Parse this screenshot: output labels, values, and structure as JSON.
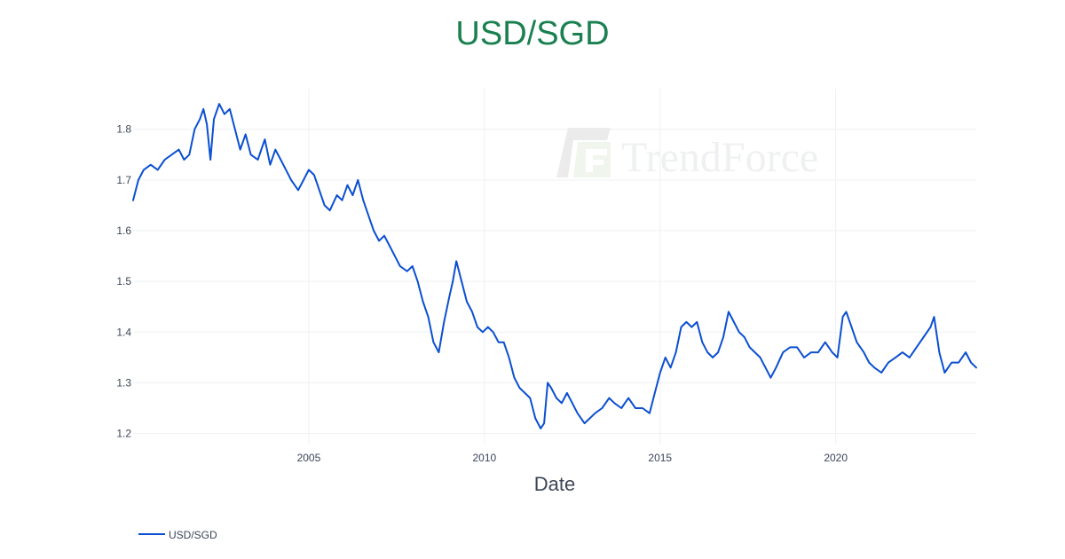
{
  "chart_data": {
    "type": "line",
    "title": "USD/SGD",
    "xlabel": "Date",
    "ylabel": "",
    "xlim": [
      2000.0,
      2024.0
    ],
    "ylim": [
      1.18,
      1.88
    ],
    "x_ticks": [
      2005,
      2010,
      2015,
      2020
    ],
    "y_ticks": [
      1.2,
      1.3,
      1.4,
      1.5,
      1.6,
      1.7,
      1.8
    ],
    "grid": true,
    "legend": "bottom-left",
    "watermark": "TrendForce",
    "colors": {
      "line": "#0b4fd1",
      "title": "#1a8050",
      "grid": "#eef0f3",
      "text": "#3b4557"
    },
    "series": [
      {
        "name": "USD/SGD",
        "points": [
          [
            2000.0,
            1.66
          ],
          [
            2000.15,
            1.7
          ],
          [
            2000.3,
            1.72
          ],
          [
            2000.5,
            1.73
          ],
          [
            2000.7,
            1.72
          ],
          [
            2000.9,
            1.74
          ],
          [
            2001.1,
            1.75
          ],
          [
            2001.3,
            1.76
          ],
          [
            2001.45,
            1.74
          ],
          [
            2001.6,
            1.75
          ],
          [
            2001.75,
            1.8
          ],
          [
            2001.9,
            1.82
          ],
          [
            2002.0,
            1.84
          ],
          [
            2002.1,
            1.81
          ],
          [
            2002.2,
            1.74
          ],
          [
            2002.3,
            1.82
          ],
          [
            2002.45,
            1.85
          ],
          [
            2002.6,
            1.83
          ],
          [
            2002.75,
            1.84
          ],
          [
            2002.9,
            1.8
          ],
          [
            2003.05,
            1.76
          ],
          [
            2003.2,
            1.79
          ],
          [
            2003.35,
            1.75
          ],
          [
            2003.55,
            1.74
          ],
          [
            2003.75,
            1.78
          ],
          [
            2003.9,
            1.73
          ],
          [
            2004.05,
            1.76
          ],
          [
            2004.2,
            1.74
          ],
          [
            2004.35,
            1.72
          ],
          [
            2004.5,
            1.7
          ],
          [
            2004.7,
            1.68
          ],
          [
            2004.85,
            1.7
          ],
          [
            2005.0,
            1.72
          ],
          [
            2005.15,
            1.71
          ],
          [
            2005.3,
            1.68
          ],
          [
            2005.45,
            1.65
          ],
          [
            2005.6,
            1.64
          ],
          [
            2005.8,
            1.67
          ],
          [
            2005.95,
            1.66
          ],
          [
            2006.1,
            1.69
          ],
          [
            2006.25,
            1.67
          ],
          [
            2006.4,
            1.7
          ],
          [
            2006.55,
            1.66
          ],
          [
            2006.7,
            1.63
          ],
          [
            2006.85,
            1.6
          ],
          [
            2007.0,
            1.58
          ],
          [
            2007.15,
            1.59
          ],
          [
            2007.3,
            1.57
          ],
          [
            2007.45,
            1.55
          ],
          [
            2007.6,
            1.53
          ],
          [
            2007.8,
            1.52
          ],
          [
            2007.95,
            1.53
          ],
          [
            2008.1,
            1.5
          ],
          [
            2008.25,
            1.46
          ],
          [
            2008.4,
            1.43
          ],
          [
            2008.55,
            1.38
          ],
          [
            2008.7,
            1.36
          ],
          [
            2008.85,
            1.42
          ],
          [
            2009.0,
            1.47
          ],
          [
            2009.1,
            1.5
          ],
          [
            2009.2,
            1.54
          ],
          [
            2009.35,
            1.5
          ],
          [
            2009.5,
            1.46
          ],
          [
            2009.65,
            1.44
          ],
          [
            2009.8,
            1.41
          ],
          [
            2009.95,
            1.4
          ],
          [
            2010.1,
            1.41
          ],
          [
            2010.25,
            1.4
          ],
          [
            2010.4,
            1.38
          ],
          [
            2010.55,
            1.38
          ],
          [
            2010.7,
            1.35
          ],
          [
            2010.85,
            1.31
          ],
          [
            2011.0,
            1.29
          ],
          [
            2011.15,
            1.28
          ],
          [
            2011.3,
            1.27
          ],
          [
            2011.45,
            1.23
          ],
          [
            2011.6,
            1.21
          ],
          [
            2011.7,
            1.22
          ],
          [
            2011.8,
            1.3
          ],
          [
            2011.9,
            1.29
          ],
          [
            2012.05,
            1.27
          ],
          [
            2012.2,
            1.26
          ],
          [
            2012.35,
            1.28
          ],
          [
            2012.5,
            1.26
          ],
          [
            2012.65,
            1.24
          ],
          [
            2012.85,
            1.22
          ],
          [
            2013.0,
            1.23
          ],
          [
            2013.15,
            1.24
          ],
          [
            2013.35,
            1.25
          ],
          [
            2013.55,
            1.27
          ],
          [
            2013.7,
            1.26
          ],
          [
            2013.9,
            1.25
          ],
          [
            2014.1,
            1.27
          ],
          [
            2014.3,
            1.25
          ],
          [
            2014.5,
            1.25
          ],
          [
            2014.7,
            1.24
          ],
          [
            2014.85,
            1.28
          ],
          [
            2015.0,
            1.32
          ],
          [
            2015.15,
            1.35
          ],
          [
            2015.3,
            1.33
          ],
          [
            2015.45,
            1.36
          ],
          [
            2015.6,
            1.41
          ],
          [
            2015.75,
            1.42
          ],
          [
            2015.9,
            1.41
          ],
          [
            2016.05,
            1.42
          ],
          [
            2016.2,
            1.38
          ],
          [
            2016.35,
            1.36
          ],
          [
            2016.5,
            1.35
          ],
          [
            2016.65,
            1.36
          ],
          [
            2016.8,
            1.39
          ],
          [
            2016.95,
            1.44
          ],
          [
            2017.1,
            1.42
          ],
          [
            2017.25,
            1.4
          ],
          [
            2017.4,
            1.39
          ],
          [
            2017.55,
            1.37
          ],
          [
            2017.7,
            1.36
          ],
          [
            2017.85,
            1.35
          ],
          [
            2018.0,
            1.33
          ],
          [
            2018.15,
            1.31
          ],
          [
            2018.3,
            1.33
          ],
          [
            2018.5,
            1.36
          ],
          [
            2018.7,
            1.37
          ],
          [
            2018.9,
            1.37
          ],
          [
            2019.1,
            1.35
          ],
          [
            2019.3,
            1.36
          ],
          [
            2019.5,
            1.36
          ],
          [
            2019.7,
            1.38
          ],
          [
            2019.9,
            1.36
          ],
          [
            2020.05,
            1.35
          ],
          [
            2020.2,
            1.43
          ],
          [
            2020.3,
            1.44
          ],
          [
            2020.45,
            1.41
          ],
          [
            2020.6,
            1.38
          ],
          [
            2020.8,
            1.36
          ],
          [
            2020.95,
            1.34
          ],
          [
            2021.1,
            1.33
          ],
          [
            2021.3,
            1.32
          ],
          [
            2021.5,
            1.34
          ],
          [
            2021.7,
            1.35
          ],
          [
            2021.9,
            1.36
          ],
          [
            2022.1,
            1.35
          ],
          [
            2022.3,
            1.37
          ],
          [
            2022.5,
            1.39
          ],
          [
            2022.7,
            1.41
          ],
          [
            2022.8,
            1.43
          ],
          [
            2022.95,
            1.36
          ],
          [
            2023.1,
            1.32
          ],
          [
            2023.3,
            1.34
          ],
          [
            2023.5,
            1.34
          ],
          [
            2023.7,
            1.36
          ],
          [
            2023.85,
            1.34
          ],
          [
            2024.0,
            1.33
          ]
        ]
      }
    ]
  }
}
